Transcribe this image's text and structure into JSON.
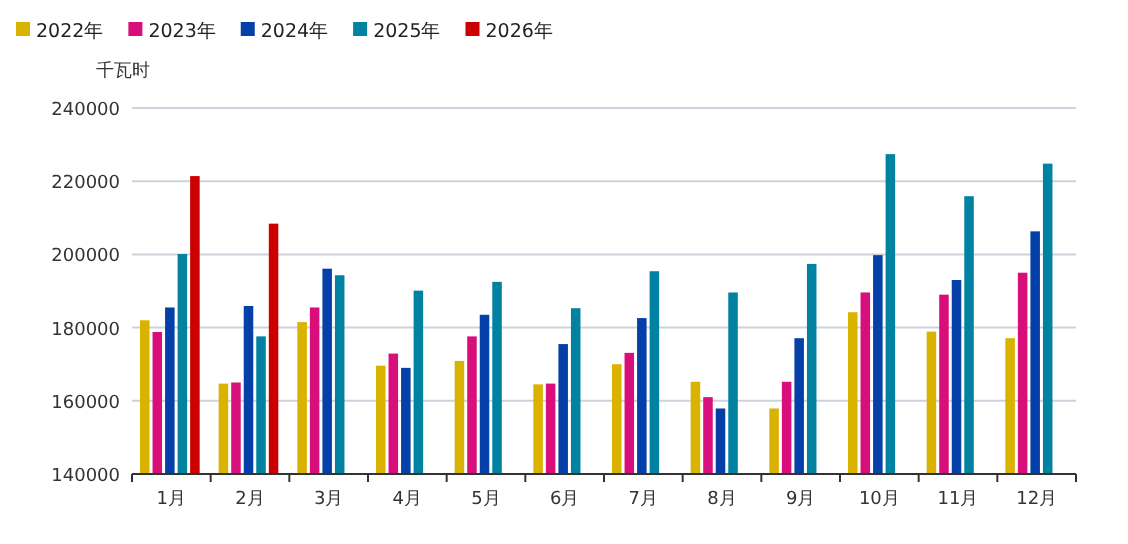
{
  "chart_data": {
    "type": "bar",
    "ylabel": "千瓦时",
    "categories": [
      "1月",
      "2月",
      "3月",
      "4月",
      "5月",
      "6月",
      "7月",
      "8月",
      "9月",
      "10月",
      "11月",
      "12月"
    ],
    "series": [
      {
        "name": "2022年",
        "color": "#d9b300",
        "values": [
          182000,
          164700,
          181500,
          169600,
          170900,
          164500,
          170000,
          165200,
          157900,
          184200,
          178900,
          177100
        ]
      },
      {
        "name": "2023年",
        "color": "#d80f7a",
        "values": [
          178800,
          165000,
          185500,
          172900,
          177600,
          164700,
          173100,
          161000,
          165200,
          189600,
          189000,
          195000
        ]
      },
      {
        "name": "2024年",
        "color": "#0540a8",
        "values": [
          185500,
          185900,
          196100,
          169000,
          183500,
          175500,
          182600,
          157900,
          177100,
          199800,
          193000,
          206300
        ]
      },
      {
        "name": "2025年",
        "color": "#0082a0",
        "values": [
          200100,
          177600,
          194300,
          190100,
          192500,
          185300,
          195400,
          189600,
          197400,
          227400,
          215900,
          224800
        ]
      },
      {
        "name": "2026年",
        "color": "#cc0000",
        "values": [
          221400,
          208400,
          null,
          null,
          null,
          null,
          null,
          null,
          null,
          null,
          null,
          null
        ]
      }
    ],
    "ylim": [
      140000,
      240000
    ],
    "yticks": [
      140000,
      160000,
      180000,
      200000,
      220000,
      240000
    ],
    "grid": "y",
    "legend": "top left"
  }
}
